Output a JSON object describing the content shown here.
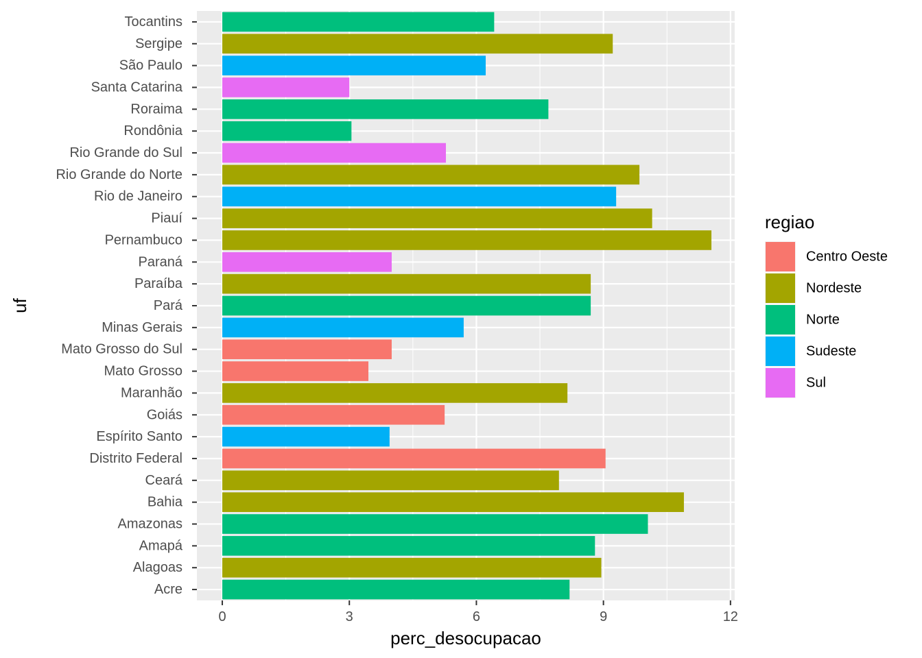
{
  "chart_data": {
    "type": "bar",
    "orientation": "horizontal",
    "xlabel": "perc_desocupacao",
    "ylabel": "uf",
    "xlim": [
      -0.6,
      12.1
    ],
    "x_ticks": [
      0,
      3,
      6,
      9,
      12
    ],
    "x_tick_labels": [
      "0",
      "3",
      "6",
      "9",
      "12"
    ],
    "grid": true,
    "legend_position": "right",
    "legend": {
      "title": "regiao",
      "entries": [
        {
          "name": "Centro Oeste",
          "color": "#F8766D"
        },
        {
          "name": "Nordeste",
          "color": "#A3A500"
        },
        {
          "name": "Norte",
          "color": "#00BF7D"
        },
        {
          "name": "Sudeste",
          "color": "#00B0F6"
        },
        {
          "name": "Sul",
          "color": "#E76BF3"
        }
      ]
    },
    "categories": [
      "Acre",
      "Alagoas",
      "Amapá",
      "Amazonas",
      "Bahia",
      "Ceará",
      "Distrito Federal",
      "Espírito Santo",
      "Goiás",
      "Maranhão",
      "Mato Grosso",
      "Mato Grosso do Sul",
      "Minas Gerais",
      "Pará",
      "Paraíba",
      "Paraná",
      "Pernambuco",
      "Piauí",
      "Rio de Janeiro",
      "Rio Grande do Norte",
      "Rio Grande do Sul",
      "Rondônia",
      "Roraima",
      "Santa Catarina",
      "São Paulo",
      "Sergipe",
      "Tocantins"
    ],
    "values": [
      8.2,
      8.95,
      8.8,
      10.05,
      10.9,
      7.95,
      9.05,
      3.95,
      5.25,
      8.15,
      3.45,
      4.0,
      5.7,
      8.7,
      8.7,
      4.0,
      11.55,
      10.15,
      9.3,
      9.85,
      5.28,
      3.05,
      7.7,
      3.0,
      6.22,
      9.22,
      6.42
    ],
    "regions": [
      "Norte",
      "Nordeste",
      "Norte",
      "Norte",
      "Nordeste",
      "Nordeste",
      "Centro Oeste",
      "Sudeste",
      "Centro Oeste",
      "Nordeste",
      "Centro Oeste",
      "Centro Oeste",
      "Sudeste",
      "Norte",
      "Nordeste",
      "Sul",
      "Nordeste",
      "Nordeste",
      "Sudeste",
      "Nordeste",
      "Sul",
      "Norte",
      "Norte",
      "Sul",
      "Sudeste",
      "Nordeste",
      "Norte"
    ]
  }
}
